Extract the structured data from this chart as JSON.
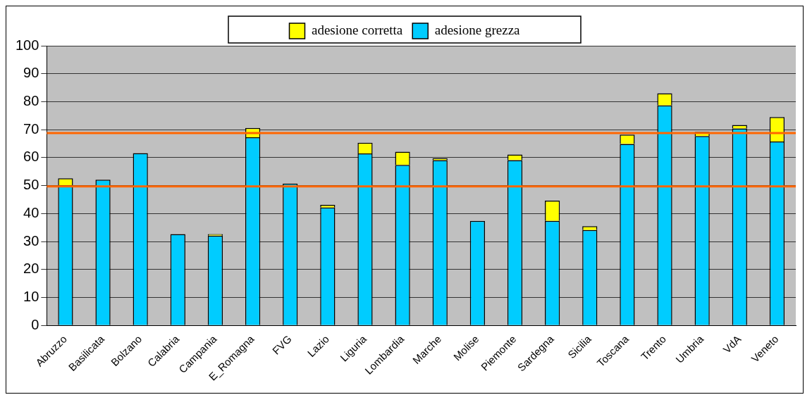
{
  "chart_data": {
    "type": "bar",
    "stacked": true,
    "categories": [
      "Abruzzo",
      "Basilicata",
      "Bolzano",
      "Calabria",
      "Campania",
      "E_Romagna",
      "FVG",
      "Lazio",
      "Liguria",
      "Lombardia",
      "Marche",
      "Molise",
      "Piemonte",
      "Sardegna",
      "Sicilia",
      "Toscana",
      "Trento",
      "Umbria",
      "VdA",
      "Veneto"
    ],
    "series": [
      {
        "name": "adesione grezza",
        "color": "#00ccff",
        "values": [
          50.1,
          52.1,
          61.6,
          32.7,
          32.1,
          67.3,
          50.7,
          42.2,
          61.5,
          57.4,
          59.1,
          37.4,
          59.1,
          37.4,
          34.1,
          64.9,
          78.7,
          67.7,
          70.4,
          65.8
        ]
      },
      {
        "name": "adesione corretta",
        "color": "#ffff00",
        "values": [
          2.5,
          0,
          0,
          0,
          0.6,
          3.3,
          0,
          0.9,
          3.8,
          4.7,
          0.7,
          0,
          2.0,
          7.2,
          1.4,
          3.3,
          4.3,
          1.5,
          1.3,
          8.7
        ]
      }
    ],
    "ylim": [
      0,
      100
    ],
    "yticks": [
      0,
      10,
      20,
      30,
      40,
      50,
      60,
      70,
      80,
      90,
      100
    ],
    "grid": "y",
    "legend": "top",
    "ref_lines": [
      {
        "axis": "y",
        "value": 68.8,
        "color": "#ff6600"
      },
      {
        "axis": "y",
        "value": 49.7,
        "color": "#ff6600"
      }
    ]
  }
}
